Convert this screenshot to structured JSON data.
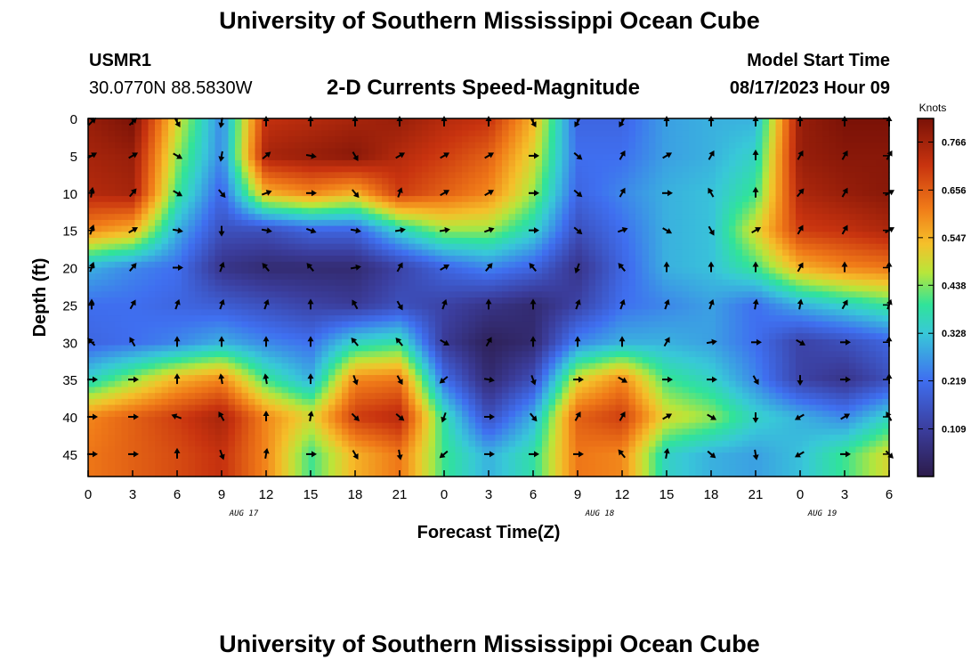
{
  "header": {
    "title": "University of Southern Mississippi Ocean Cube",
    "station_id": "USMR1",
    "station_coords": "30.0770N  88.5830W",
    "chart_subtitle": "2-D Currents Speed-Magnitude",
    "model_label": "Model Start Time",
    "model_time": "08/17/2023 Hour 09"
  },
  "footer": {
    "title": "University of Southern Mississippi Ocean Cube"
  },
  "chart_data": {
    "type": "heatmap",
    "title": "2-D Currents Speed-Magnitude",
    "xlabel": "Forecast Time(Z)",
    "ylabel": "Depth (ft)",
    "x_tick_labels": [
      "0",
      "3",
      "6",
      "9",
      "12",
      "15",
      "18",
      "21",
      "0",
      "3",
      "6",
      "9",
      "12",
      "15",
      "18",
      "21",
      "0",
      "3",
      "6"
    ],
    "x_date_labels": [
      {
        "label": "AUG 17",
        "hour_index": 3.5
      },
      {
        "label": "AUG 18",
        "hour_index": 11.5
      },
      {
        "label": "AUG 19",
        "hour_index": 16.5
      }
    ],
    "y_ticks": [
      0,
      5,
      10,
      15,
      20,
      25,
      30,
      35,
      40,
      45
    ],
    "ylim": [
      0,
      48
    ],
    "y_inverted": true,
    "colorbar": {
      "unit": "Knots",
      "tick_labels": [
        "0.766",
        "0.656",
        "0.547",
        "0.438",
        "0.328",
        "0.219",
        "0.109"
      ],
      "tick_values": [
        0.766,
        0.656,
        0.547,
        0.438,
        0.328,
        0.219,
        0.109
      ],
      "range": [
        0.0,
        0.82
      ]
    },
    "grid_x_index": [
      0,
      1,
      2,
      3,
      4,
      5,
      6,
      7,
      8,
      9,
      10,
      11,
      12,
      13,
      14,
      15,
      16,
      17,
      18
    ],
    "grid_depths_ft": [
      0,
      5,
      10,
      15,
      20,
      25,
      30,
      35,
      40,
      45
    ],
    "speed_knots": [
      [
        0.78,
        0.82,
        0.5,
        0.25,
        0.72,
        0.74,
        0.76,
        0.78,
        0.74,
        0.72,
        0.55,
        0.2,
        0.2,
        0.28,
        0.3,
        0.3,
        0.78,
        0.82,
        0.82
      ],
      [
        0.76,
        0.78,
        0.45,
        0.25,
        0.76,
        0.78,
        0.8,
        0.74,
        0.7,
        0.65,
        0.5,
        0.22,
        0.22,
        0.28,
        0.3,
        0.35,
        0.78,
        0.8,
        0.8
      ],
      [
        0.74,
        0.76,
        0.4,
        0.2,
        0.55,
        0.6,
        0.55,
        0.7,
        0.65,
        0.6,
        0.45,
        0.2,
        0.25,
        0.3,
        0.32,
        0.4,
        0.75,
        0.78,
        0.8
      ],
      [
        0.6,
        0.55,
        0.3,
        0.15,
        0.15,
        0.2,
        0.2,
        0.35,
        0.45,
        0.45,
        0.35,
        0.15,
        0.22,
        0.3,
        0.32,
        0.5,
        0.7,
        0.72,
        0.75
      ],
      [
        0.3,
        0.25,
        0.22,
        0.08,
        0.05,
        0.05,
        0.05,
        0.12,
        0.2,
        0.25,
        0.2,
        0.08,
        0.2,
        0.3,
        0.32,
        0.4,
        0.55,
        0.6,
        0.62
      ],
      [
        0.22,
        0.22,
        0.2,
        0.18,
        0.15,
        0.12,
        0.1,
        0.15,
        0.12,
        0.08,
        0.05,
        0.12,
        0.22,
        0.25,
        0.28,
        0.22,
        0.3,
        0.35,
        0.4
      ],
      [
        0.2,
        0.22,
        0.25,
        0.3,
        0.25,
        0.22,
        0.35,
        0.38,
        0.1,
        0.02,
        0.05,
        0.25,
        0.3,
        0.3,
        0.28,
        0.22,
        0.12,
        0.15,
        0.2
      ],
      [
        0.35,
        0.45,
        0.55,
        0.6,
        0.4,
        0.3,
        0.6,
        0.62,
        0.22,
        0.05,
        0.15,
        0.5,
        0.6,
        0.4,
        0.35,
        0.25,
        0.12,
        0.08,
        0.15
      ],
      [
        0.6,
        0.65,
        0.7,
        0.76,
        0.6,
        0.5,
        0.7,
        0.74,
        0.38,
        0.15,
        0.3,
        0.65,
        0.7,
        0.5,
        0.45,
        0.35,
        0.3,
        0.25,
        0.35
      ],
      [
        0.62,
        0.65,
        0.68,
        0.72,
        0.6,
        0.4,
        0.55,
        0.62,
        0.4,
        0.3,
        0.38,
        0.62,
        0.6,
        0.35,
        0.3,
        0.28,
        0.32,
        0.4,
        0.5
      ]
    ],
    "direction_deg": [
      [
        45,
        45,
        150,
        190,
        0,
        0,
        0,
        0,
        0,
        0,
        150,
        210,
        210,
        0,
        0,
        0,
        0,
        0,
        0
      ],
      [
        60,
        60,
        120,
        190,
        50,
        100,
        150,
        60,
        60,
        60,
        90,
        130,
        30,
        60,
        30,
        0,
        30,
        30,
        30
      ],
      [
        10,
        40,
        120,
        140,
        70,
        90,
        140,
        20,
        60,
        60,
        90,
        130,
        30,
        90,
        330,
        0,
        40,
        30,
        60
      ],
      [
        20,
        60,
        100,
        180,
        100,
        110,
        100,
        80,
        80,
        70,
        90,
        130,
        70,
        120,
        150,
        60,
        30,
        30,
        60
      ],
      [
        20,
        40,
        90,
        20,
        320,
        320,
        80,
        30,
        60,
        40,
        320,
        200,
        320,
        0,
        0,
        0,
        30,
        0,
        0
      ],
      [
        0,
        30,
        20,
        20,
        20,
        0,
        330,
        150,
        20,
        0,
        0,
        20,
        20,
        20,
        20,
        10,
        10,
        30,
        20
      ],
      [
        315,
        330,
        0,
        0,
        0,
        0,
        320,
        320,
        120,
        30,
        0,
        0,
        0,
        30,
        80,
        90,
        120,
        90,
        0
      ],
      [
        90,
        90,
        0,
        350,
        350,
        0,
        160,
        150,
        230,
        100,
        160,
        90,
        120,
        90,
        90,
        150,
        180,
        90,
        0
      ],
      [
        90,
        90,
        290,
        330,
        0,
        10,
        135,
        130,
        200,
        90,
        140,
        30,
        30,
        60,
        120,
        180,
        240,
        60,
        330
      ],
      [
        90,
        90,
        0,
        160,
        10,
        90,
        150,
        170,
        230,
        90,
        90,
        90,
        320,
        10,
        130,
        170,
        240,
        90,
        135
      ]
    ]
  }
}
